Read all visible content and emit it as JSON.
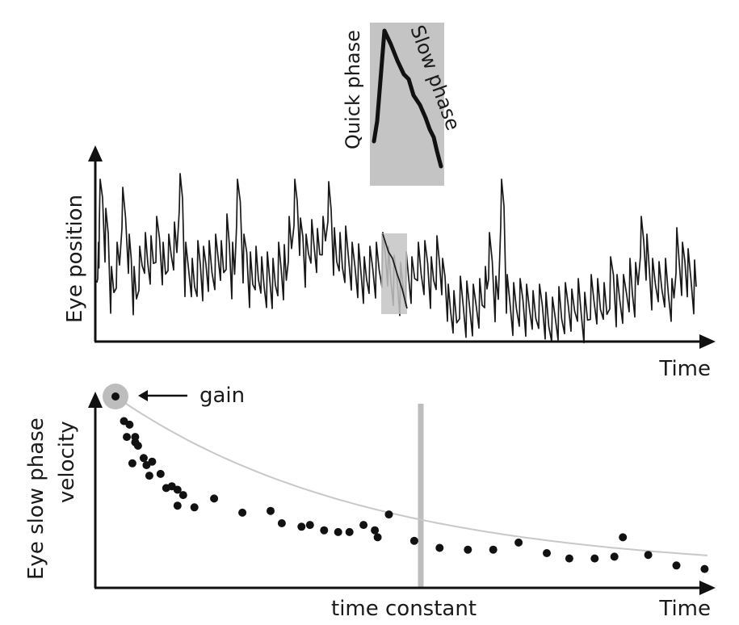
{
  "top_panel": {
    "ylabel": "Eye position",
    "xlabel": "Time",
    "inset": {
      "quick_label": "Quick phase",
      "slow_label": "Slow phase"
    },
    "colors": {
      "trace": "#1a1a1a",
      "highlight": "#c4c4c4"
    }
  },
  "bottom_panel": {
    "ylabel_line1": "Eye slow phase",
    "ylabel_line2": "velocity",
    "xlabel": "Time",
    "gain_label": "gain",
    "time_constant_label": "time constant",
    "colors": {
      "dots": "#111111",
      "fit_curve": "#c8c8c8",
      "marker": "#bdbdbd"
    }
  },
  "chart_data": {
    "type": "scatter",
    "series": [
      {
        "values": [
          [
            0.0,
            1.0
          ],
          [
            0.03,
            0.86
          ],
          [
            0.05,
            0.84
          ],
          [
            0.04,
            0.77
          ],
          [
            0.07,
            0.74
          ],
          [
            0.07,
            0.77
          ],
          [
            0.08,
            0.72
          ],
          [
            0.06,
            0.62
          ],
          [
            0.1,
            0.65
          ],
          [
            0.11,
            0.61
          ],
          [
            0.13,
            0.63
          ],
          [
            0.12,
            0.55
          ],
          [
            0.16,
            0.56
          ],
          [
            0.18,
            0.48
          ],
          [
            0.2,
            0.49
          ],
          [
            0.22,
            0.47
          ],
          [
            0.24,
            0.44
          ],
          [
            0.22,
            0.38
          ],
          [
            0.28,
            0.37
          ],
          [
            0.35,
            0.42
          ],
          [
            0.45,
            0.34
          ],
          [
            0.55,
            0.35
          ],
          [
            0.59,
            0.28
          ],
          [
            0.66,
            0.26
          ],
          [
            0.69,
            0.27
          ],
          [
            0.74,
            0.24
          ],
          [
            0.79,
            0.23
          ],
          [
            0.83,
            0.23
          ],
          [
            0.88,
            0.27
          ],
          [
            0.92,
            0.24
          ],
          [
            0.93,
            0.2
          ],
          [
            0.97,
            0.33
          ],
          [
            1.06,
            0.18
          ],
          [
            1.15,
            0.14
          ],
          [
            1.25,
            0.13
          ],
          [
            1.34,
            0.13
          ],
          [
            1.43,
            0.17
          ],
          [
            1.53,
            0.11
          ],
          [
            1.61,
            0.08
          ],
          [
            1.7,
            0.08
          ],
          [
            1.77,
            0.09
          ],
          [
            1.8,
            0.2
          ],
          [
            1.89,
            0.1
          ],
          [
            1.99,
            0.04
          ],
          [
            2.09,
            0.02
          ]
        ]
      }
    ],
    "fit": {
      "model": "exponential decay",
      "time_constant": 0.9
    }
  }
}
